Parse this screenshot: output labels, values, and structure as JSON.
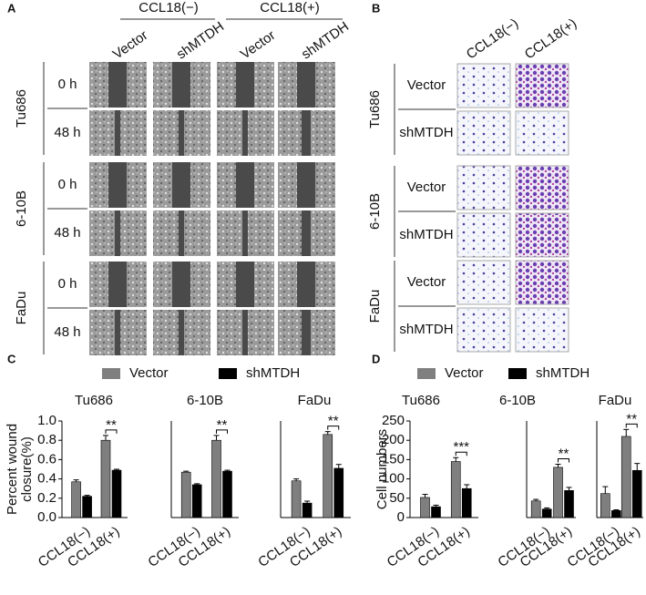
{
  "panel_a": {
    "letter": "A",
    "groups": [
      "CCL18(−)",
      "CCL18(+)"
    ],
    "columns": [
      "Vector",
      "shMTDH",
      "Vector",
      "shMTDH"
    ],
    "cell_lines": [
      "Tu686",
      "6-10B",
      "FaDu"
    ],
    "times": [
      "0 h",
      "48 h"
    ]
  },
  "panel_b": {
    "letter": "B",
    "columns": [
      "CCL18(−)",
      "CCL18(+)"
    ],
    "cell_lines": [
      "Tu686",
      "6-10B",
      "FaDu"
    ],
    "rows": [
      "Vector",
      "shMTDH"
    ]
  },
  "panel_c": {
    "letter": "C"
  },
  "panel_d": {
    "letter": "D"
  },
  "chart_data": [
    {
      "type": "bar",
      "title": "Tu686",
      "categories": [
        "CCL18(−)",
        "CCL18(+)"
      ],
      "legend": true,
      "y_label": [
        "Percent wound",
        "closure(%)"
      ],
      "series": [
        {
          "name": "Vector",
          "color": "#7f7f7f",
          "values": [
            0.37,
            0.8
          ],
          "errors": [
            0.02,
            0.05
          ]
        },
        {
          "name": "shMTDH",
          "color": "#000000",
          "values": [
            0.22,
            0.49
          ],
          "errors": [
            0.01,
            0.01
          ]
        }
      ],
      "ylim": [
        0,
        1
      ],
      "yticks": [
        {
          "value": 0,
          "label": "0.0"
        },
        0.2,
        0.4,
        0.6,
        0.8,
        {
          "value": 1,
          "label": "1.0"
        }
      ],
      "annotation": "**"
    },
    {
      "type": "bar",
      "title": "6-10B",
      "categories": [
        "CCL18(−)",
        "CCL18(+)"
      ],
      "series": [
        {
          "name": "Vector",
          "color": "#7f7f7f",
          "values": [
            0.47,
            0.8
          ],
          "errors": [
            0.01,
            0.05
          ]
        },
        {
          "name": "shMTDH",
          "color": "#000000",
          "values": [
            0.34,
            0.48
          ],
          "errors": [
            0.01,
            0.01
          ]
        }
      ],
      "ylim": [
        0,
        1
      ],
      "annotation": "**"
    },
    {
      "type": "bar",
      "title": "FaDu",
      "categories": [
        "CCL18(−)",
        "CCL18(+)"
      ],
      "series": [
        {
          "name": "Vector",
          "color": "#7f7f7f",
          "values": [
            0.38,
            0.86
          ],
          "errors": [
            0.02,
            0.03
          ]
        },
        {
          "name": "shMTDH",
          "color": "#000000",
          "values": [
            0.15,
            0.51
          ],
          "errors": [
            0.02,
            0.04
          ]
        }
      ],
      "ylim": [
        0,
        1
      ],
      "annotation": "**"
    },
    {
      "type": "bar",
      "title": "Tu686",
      "categories": [
        "CCL18(−)",
        "CCL18(+)"
      ],
      "legend": true,
      "y_label": [
        "Cell numbers"
      ],
      "series": [
        {
          "name": "Vector",
          "color": "#7f7f7f",
          "values": [
            52,
            145
          ],
          "errors": [
            8,
            10
          ]
        },
        {
          "name": "shMTDH",
          "color": "#000000",
          "values": [
            28,
            75
          ],
          "errors": [
            4,
            10
          ]
        }
      ],
      "ylim": [
        0,
        250
      ],
      "yticks": [
        0,
        50,
        100,
        150,
        200,
        250
      ],
      "annotation": "***"
    },
    {
      "type": "bar",
      "title": "6-10B",
      "categories": [
        "CCL18(−)",
        "CCL18(+)"
      ],
      "series": [
        {
          "name": "Vector",
          "color": "#7f7f7f",
          "values": [
            43,
            130
          ],
          "errors": [
            4,
            8
          ]
        },
        {
          "name": "shMTDH",
          "color": "#000000",
          "values": [
            22,
            70
          ],
          "errors": [
            3,
            8
          ]
        }
      ],
      "ylim": [
        0,
        250
      ],
      "annotation": "**"
    },
    {
      "type": "bar",
      "title": "FaDu",
      "categories": [
        "CCL18(−)",
        "CCL18(+)"
      ],
      "series": [
        {
          "name": "Vector",
          "color": "#7f7f7f",
          "values": [
            62,
            210
          ],
          "errors": [
            18,
            18
          ]
        },
        {
          "name": "shMTDH",
          "color": "#000000",
          "values": [
            18,
            122
          ],
          "errors": [
            2,
            18
          ]
        }
      ],
      "ylim": [
        0,
        250
      ],
      "annotation": "**"
    }
  ]
}
